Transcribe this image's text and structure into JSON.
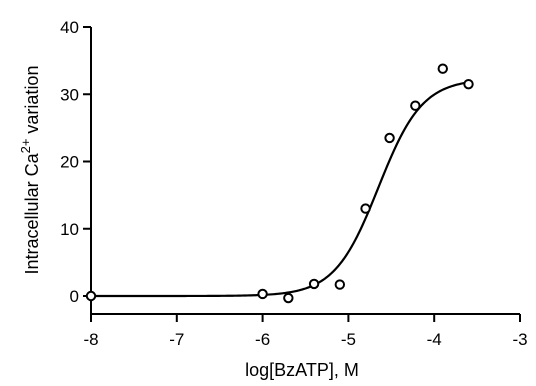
{
  "chart_data": {
    "type": "scatter",
    "xlabel": "log[BzATP], M",
    "ylabel_main": "Intracellular Ca",
    "ylabel_sup": "2+",
    "ylabel_tail": " variation",
    "xlim": [
      -8,
      -3
    ],
    "ylim": [
      -2,
      40
    ],
    "x_ticks": [
      -8,
      -7,
      -6,
      -5,
      -4,
      -3
    ],
    "y_ticks": [
      0,
      10,
      20,
      30,
      40
    ],
    "x_tick_labels": [
      "-8",
      "-7",
      "-6",
      "-5",
      "-4",
      "-3"
    ],
    "y_tick_labels": [
      "0",
      "10",
      "20",
      "30",
      "40"
    ],
    "grid": false,
    "series": [
      {
        "points": [
          {
            "x": -8.0,
            "y": 0.0
          },
          {
            "x": -6.0,
            "y": 0.3
          },
          {
            "x": -5.7,
            "y": -0.3
          },
          {
            "x": -5.4,
            "y": 1.8
          },
          {
            "x": -5.1,
            "y": 1.7
          },
          {
            "x": -4.8,
            "y": 13.0
          },
          {
            "x": -4.52,
            "y": 23.5
          },
          {
            "x": -4.22,
            "y": 28.3
          },
          {
            "x": -3.9,
            "y": 33.8
          },
          {
            "x": -3.6,
            "y": 31.5
          }
        ]
      }
    ],
    "fit_curve": {
      "type": "sigmoid",
      "bottom": 0,
      "top": 32.3,
      "logEC50": -4.65,
      "hill": 1.7,
      "x_range": [
        -8,
        -3.6
      ]
    }
  }
}
